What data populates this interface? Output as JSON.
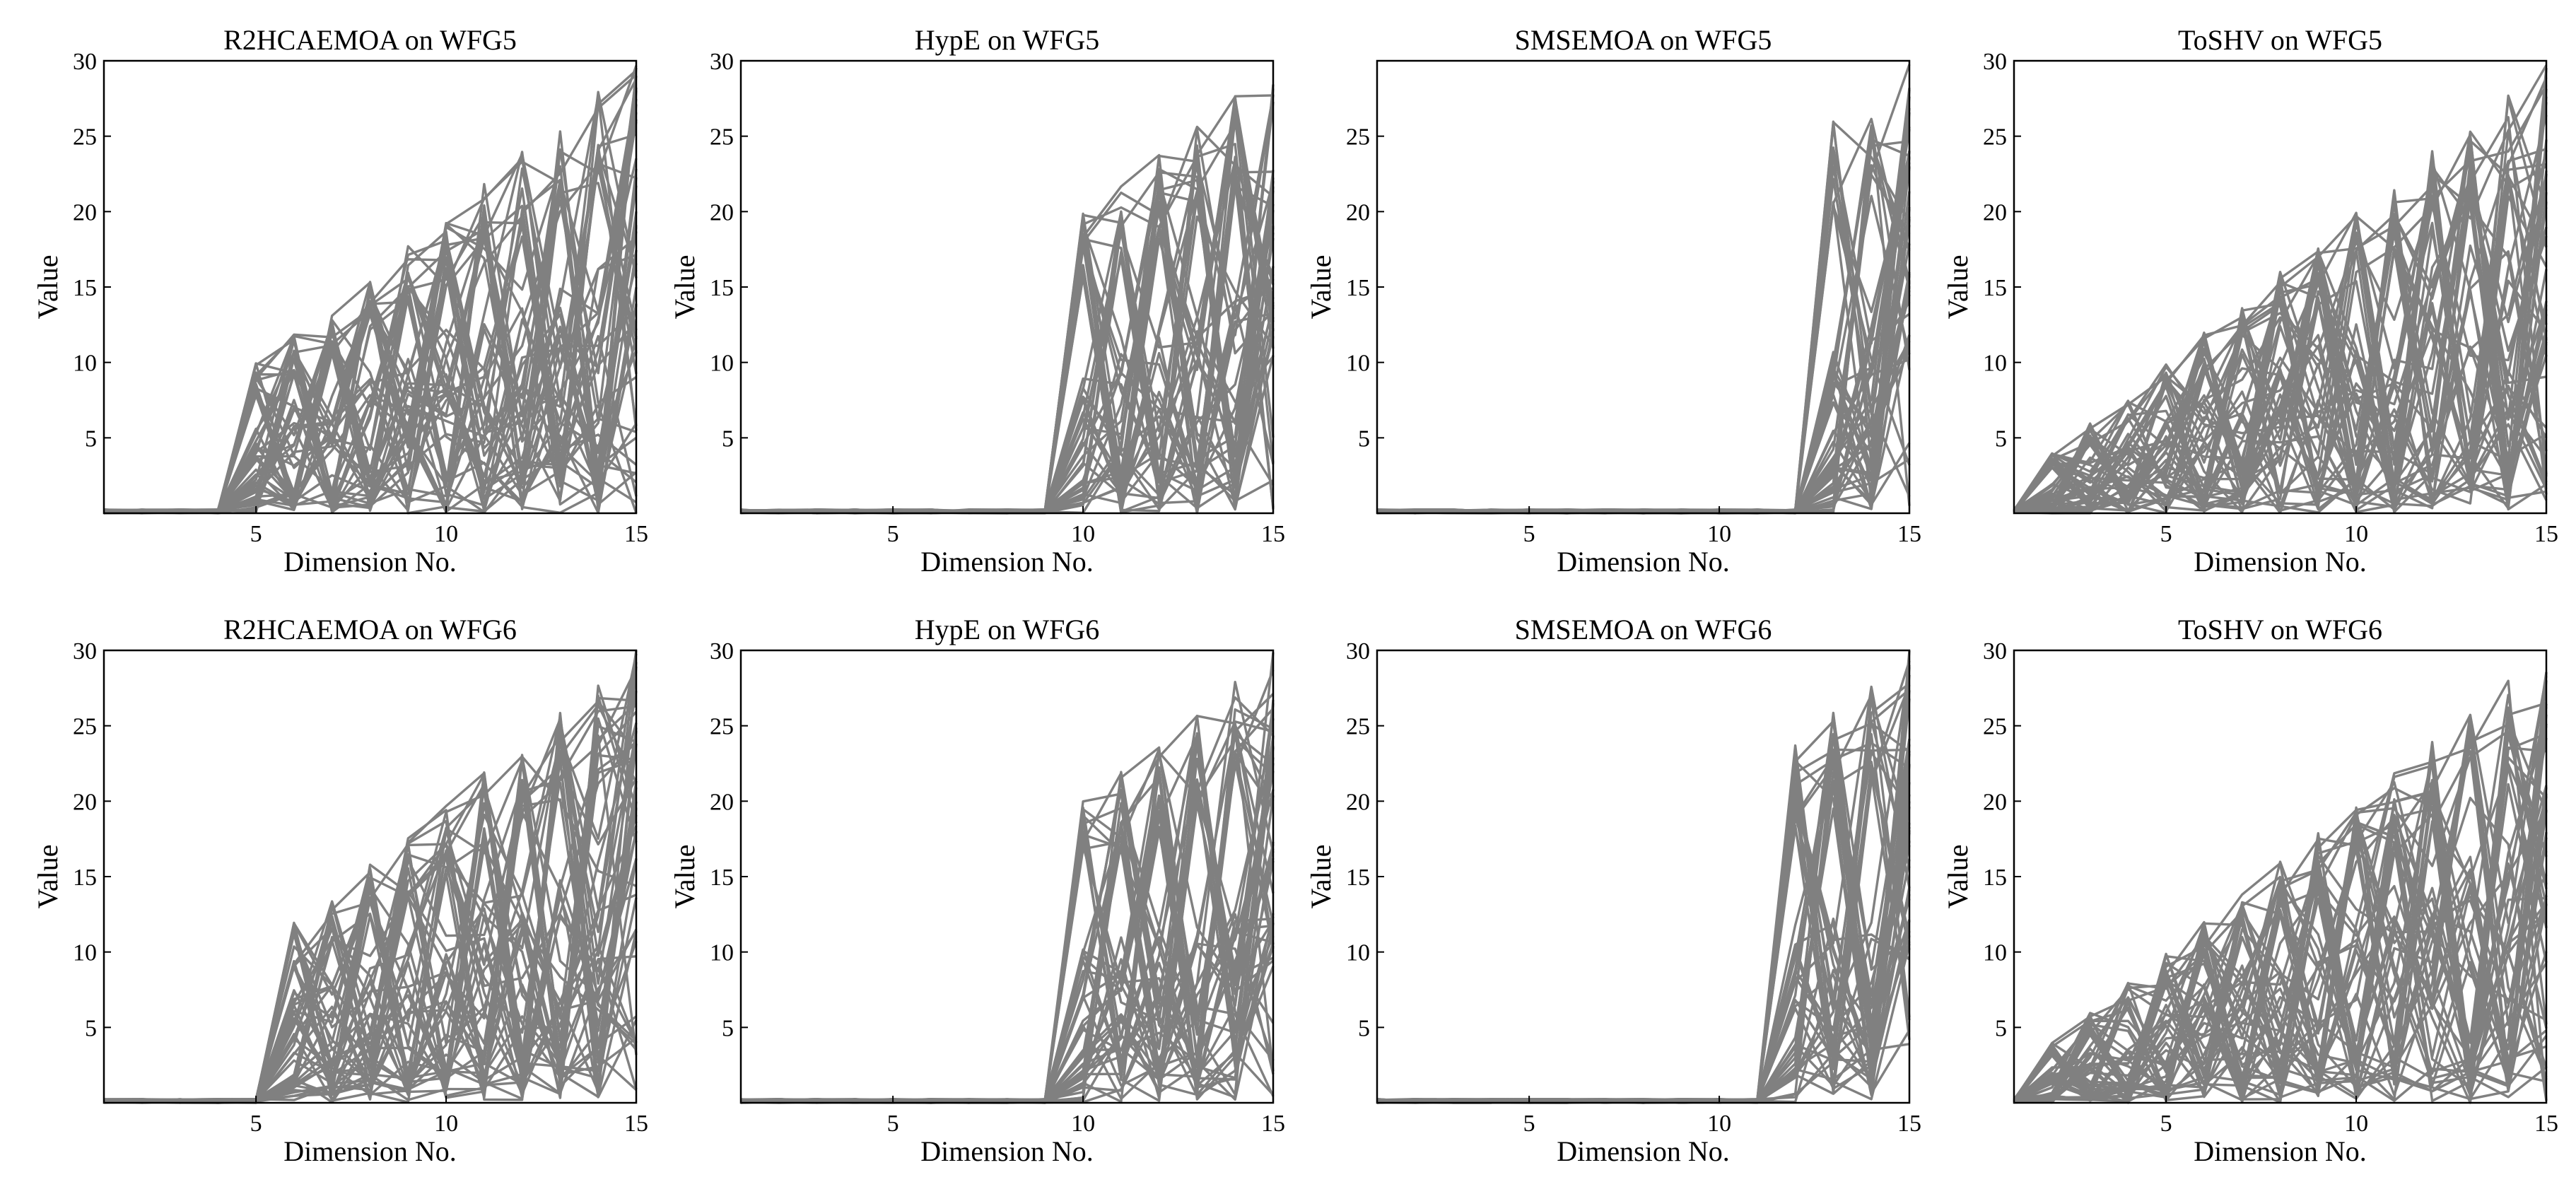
{
  "figure": {
    "rows": 2,
    "cols": 4,
    "series_color": "#808080"
  },
  "chart_data": [
    {
      "type": "line",
      "title": "R2HCAEMOA on WFG5",
      "xlabel": "Dimension No.",
      "ylabel": "Value",
      "xlim": [
        1,
        15
      ],
      "ylim": [
        0,
        30
      ],
      "xticks": [
        5,
        10,
        15
      ],
      "yticks": [
        5,
        10,
        15,
        20,
        25,
        30
      ],
      "grid": false,
      "legend": "none",
      "profile": {
        "flat_until": 4,
        "tail": 0.85,
        "spread": 0.55
      }
    },
    {
      "type": "line",
      "title": "HypE on WFG5",
      "xlabel": "Dimension No.",
      "ylabel": "Value",
      "xlim": [
        1,
        15
      ],
      "ylim": [
        0,
        30
      ],
      "xticks": [
        5,
        10,
        15
      ],
      "yticks": [
        5,
        10,
        15,
        20,
        25,
        30
      ],
      "grid": false,
      "legend": "none",
      "profile": {
        "flat_until": 9,
        "tail": 0.9,
        "spread": 0.45
      }
    },
    {
      "type": "line",
      "title": "SMSEMOA on WFG5",
      "xlabel": "Dimension No.",
      "ylabel": "Value",
      "xlim": [
        1,
        15
      ],
      "ylim": [
        0,
        30
      ],
      "xticks": [
        5,
        10,
        15
      ],
      "yticks": [
        5,
        10,
        15,
        20,
        25
      ],
      "grid": false,
      "legend": "none",
      "profile": {
        "flat_until": 12,
        "tail": 0.9,
        "spread": 0.4
      }
    },
    {
      "type": "line",
      "title": "ToSHV on WFG5",
      "xlabel": "Dimension No.",
      "ylabel": "Value",
      "xlim": [
        1,
        15
      ],
      "ylim": [
        0,
        30
      ],
      "xticks": [
        5,
        10,
        15
      ],
      "yticks": [
        5,
        10,
        15,
        20,
        25,
        30
      ],
      "grid": false,
      "legend": "none",
      "profile": {
        "flat_until": 1,
        "tail": 0.8,
        "spread": 0.6
      }
    },
    {
      "type": "line",
      "title": "R2HCAEMOA on WFG6",
      "xlabel": "Dimension No.",
      "ylabel": "Value",
      "xlim": [
        1,
        15
      ],
      "ylim": [
        0,
        30
      ],
      "xticks": [
        5,
        10,
        15
      ],
      "yticks": [
        5,
        10,
        15,
        20,
        25,
        30
      ],
      "grid": false,
      "legend": "none",
      "profile": {
        "flat_until": 5,
        "tail": 0.85,
        "spread": 0.55
      }
    },
    {
      "type": "line",
      "title": "HypE on WFG6",
      "xlabel": "Dimension No.",
      "ylabel": "Value",
      "xlim": [
        1,
        15
      ],
      "ylim": [
        0,
        30
      ],
      "xticks": [
        5,
        10,
        15
      ],
      "yticks": [
        5,
        10,
        15,
        20,
        25,
        30
      ],
      "grid": false,
      "legend": "none",
      "profile": {
        "flat_until": 9,
        "tail": 0.9,
        "spread": 0.45
      }
    },
    {
      "type": "line",
      "title": "SMSEMOA on WFG6",
      "xlabel": "Dimension No.",
      "ylabel": "Value",
      "xlim": [
        1,
        15
      ],
      "ylim": [
        0,
        30
      ],
      "xticks": [
        5,
        10,
        15
      ],
      "yticks": [
        5,
        10,
        15,
        20,
        25,
        30
      ],
      "grid": false,
      "legend": "none",
      "profile": {
        "flat_until": 11,
        "tail": 0.9,
        "spread": 0.4
      }
    },
    {
      "type": "line",
      "title": "ToSHV on WFG6",
      "xlabel": "Dimension No.",
      "ylabel": "Value",
      "xlim": [
        1,
        15
      ],
      "ylim": [
        0,
        30
      ],
      "xticks": [
        5,
        10,
        15
      ],
      "yticks": [
        5,
        10,
        15,
        20,
        25,
        30
      ],
      "grid": false,
      "legend": "none",
      "profile": {
        "flat_until": 1,
        "tail": 0.8,
        "spread": 0.6
      }
    }
  ]
}
